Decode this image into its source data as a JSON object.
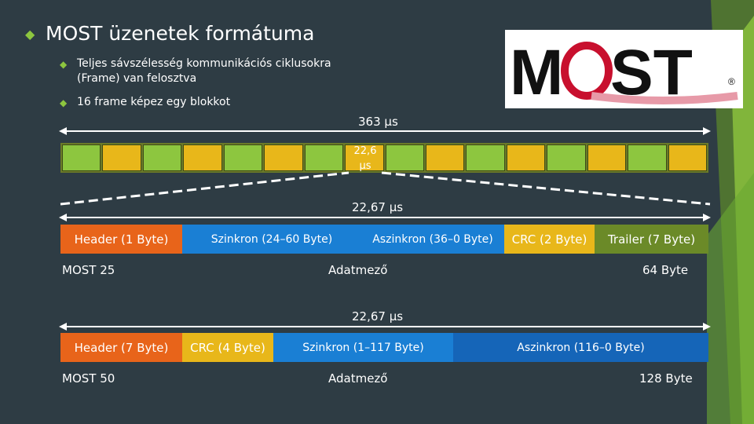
{
  "title": "MOST üzenetek formátuma",
  "bullets": [
    "Teljes sávszélesség kommunikációs ciklusokra (Frame) van felosztva",
    "16 frame képez egy blokkot"
  ],
  "logo": {
    "text": "MOST",
    "mark": "®"
  },
  "block_duration": "363 µs",
  "frame_duration": "22,6 µs",
  "frames": [
    "green",
    "yellow",
    "green",
    "yellow",
    "green",
    "yellow",
    "green",
    "yellow",
    "green",
    "yellow",
    "green",
    "yellow",
    "green",
    "yellow",
    "green",
    "yellow"
  ],
  "most25": {
    "duration": "22,67 µs",
    "segments": [
      {
        "label": "Header (1 Byte)",
        "color": "#e8641a"
      },
      {
        "label": "Szinkron (24–60 Byte)",
        "color": "#1a7fd4"
      },
      {
        "label": "Aszinkron (36–0 Byte)",
        "color": "#1a7fd4"
      },
      {
        "label": "CRC (2 Byte)",
        "color": "#e8b71a"
      },
      {
        "label": "Trailer (7 Byte)",
        "color": "#6b8a28"
      }
    ],
    "name": "MOST 25",
    "field": "Adatmező",
    "total": "64 Byte"
  },
  "most50": {
    "duration": "22,67 µs",
    "segments": [
      {
        "label": "Header (7 Byte)",
        "color": "#e8641a"
      },
      {
        "label": "CRC (4 Byte)",
        "color": "#e8b71a"
      },
      {
        "label": "Szinkron (1–117 Byte)",
        "color": "#1a7fd4"
      },
      {
        "label": "Aszinkron (116–0 Byte)",
        "color": "#1565b8"
      }
    ],
    "name": "MOST 50",
    "field": "Adatmező",
    "total": "128 Byte"
  },
  "colors": {
    "background": "#2e3c44",
    "accent_green": "#8dc63f",
    "logo_red": "#c8102e"
  }
}
